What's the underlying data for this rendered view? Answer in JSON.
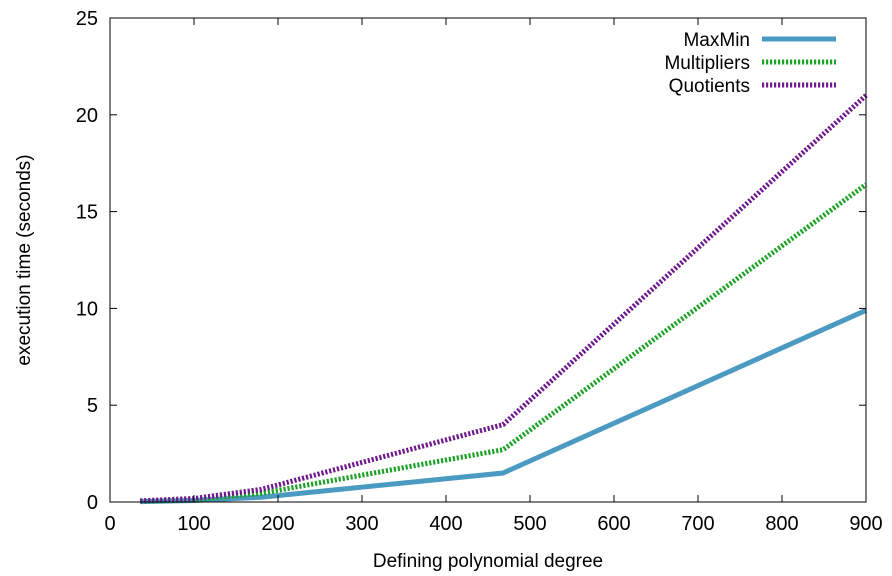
{
  "chart_data": {
    "type": "line",
    "title": "",
    "xlabel": "Defining polynomial degree",
    "ylabel": "execution time (seconds)",
    "xlim": [
      0,
      900
    ],
    "ylim": [
      0,
      25
    ],
    "xticks": [
      "0",
      "100",
      "200",
      "300",
      "400",
      "500",
      "600",
      "700",
      "800",
      "900"
    ],
    "yticks": [
      "0",
      "5",
      "10",
      "15",
      "20",
      "25"
    ],
    "grid": false,
    "legend_position": "top-right",
    "series": [
      {
        "name": "MaxMin",
        "color": "#4a9ac1",
        "style": "solid",
        "x": [
          36,
          100,
          180,
          468,
          900
        ],
        "y": [
          0.02,
          0.08,
          0.25,
          1.5,
          9.9
        ]
      },
      {
        "name": "Multipliers",
        "color": "#1fa22a",
        "style": "dotted",
        "x": [
          36,
          100,
          180,
          468,
          900
        ],
        "y": [
          0.04,
          0.12,
          0.45,
          2.7,
          16.4
        ]
      },
      {
        "name": "Quotients",
        "color": "#6e1a8c",
        "style": "dotted",
        "x": [
          36,
          100,
          180,
          468,
          900
        ],
        "y": [
          0.06,
          0.18,
          0.65,
          4.0,
          21.0
        ]
      }
    ]
  }
}
